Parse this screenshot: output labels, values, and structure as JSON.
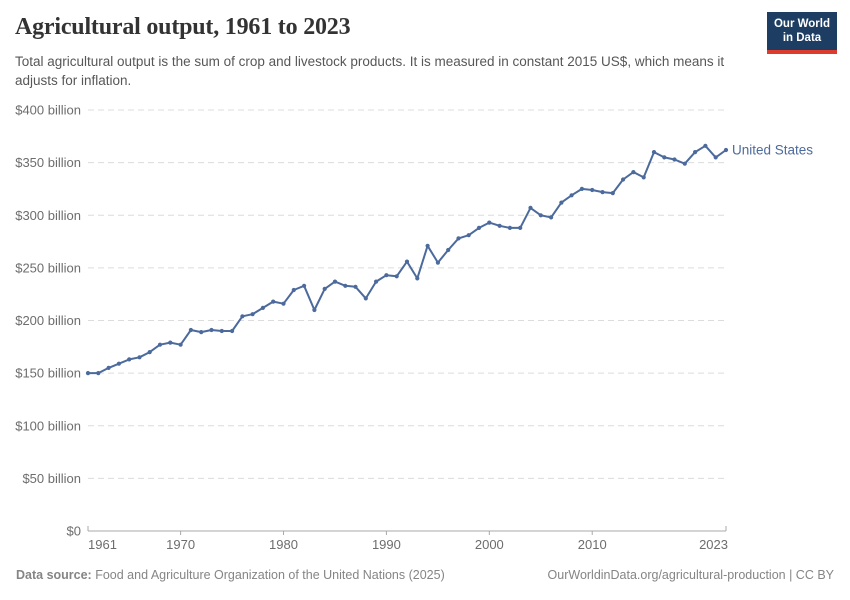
{
  "header": {
    "title": "Agricultural output, 1961 to 2023",
    "subtitle": "Total agricultural output is the sum of crop and livestock products. It is measured in constant 2015 US$, which means it adjusts for inflation.",
    "logo": {
      "line1": "Our World",
      "line2": "in Data",
      "bg_color": "#1d3d63",
      "accent_color": "#dc3b2e"
    }
  },
  "chart_data": {
    "type": "line",
    "title": "Agricultural output, 1961 to 2023",
    "xlabel": "",
    "ylabel": "",
    "xlim": [
      1961,
      2023
    ],
    "ylim": [
      0,
      400
    ],
    "grid": "horizontal-dashed",
    "legend_position": "end-of-line",
    "x_ticks": [
      1961,
      1970,
      1980,
      1990,
      2000,
      2010,
      2023
    ],
    "x_tick_labels": [
      "1961",
      "1970",
      "1980",
      "1990",
      "2000",
      "2010",
      "2023"
    ],
    "y_ticks": [
      0,
      50,
      100,
      150,
      200,
      250,
      300,
      350,
      400
    ],
    "y_tick_labels": [
      "$0",
      "$50 billion",
      "$100 billion",
      "$150 billion",
      "$200 billion",
      "$250 billion",
      "$300 billion",
      "$350 billion",
      "$400 billion"
    ],
    "unit": "constant 2015 US$, billions",
    "series": [
      {
        "name": "United States",
        "color": "#4C6A9C",
        "x": [
          1961,
          1962,
          1963,
          1964,
          1965,
          1966,
          1967,
          1968,
          1969,
          1970,
          1971,
          1972,
          1973,
          1974,
          1975,
          1976,
          1977,
          1978,
          1979,
          1980,
          1981,
          1982,
          1983,
          1984,
          1985,
          1986,
          1987,
          1988,
          1989,
          1990,
          1991,
          1992,
          1993,
          1994,
          1995,
          1996,
          1997,
          1998,
          1999,
          2000,
          2001,
          2002,
          2003,
          2004,
          2005,
          2006,
          2007,
          2008,
          2009,
          2010,
          2011,
          2012,
          2013,
          2014,
          2015,
          2016,
          2017,
          2018,
          2019,
          2020,
          2021,
          2022,
          2023
        ],
        "values": [
          150,
          150,
          155,
          159,
          163,
          165,
          170,
          177,
          179,
          177,
          191,
          189,
          191,
          190,
          190,
          204,
          206,
          212,
          218,
          216,
          229,
          233,
          210,
          230,
          237,
          233,
          232,
          221,
          237,
          243,
          242,
          256,
          240,
          271,
          255,
          267,
          278,
          281,
          288,
          293,
          290,
          288,
          288,
          307,
          300,
          298,
          312,
          319,
          325,
          324,
          322,
          321,
          334,
          341,
          336,
          360,
          355,
          353,
          349,
          360,
          366,
          355,
          362
        ]
      }
    ]
  },
  "footer": {
    "source_label": "Data source:",
    "source_text": "Food and Agriculture Organization of the United Nations (2025)",
    "right_text": "OurWorldinData.org/agricultural-production | CC BY"
  },
  "colors": {
    "line": "#4C6A9C",
    "gridline": "#dcdcdc",
    "axis": "#a8a8a8",
    "tick_text": "#6d6d6d",
    "footer_text": "#858585",
    "title_text": "#333333",
    "subtitle_text": "#575757"
  }
}
